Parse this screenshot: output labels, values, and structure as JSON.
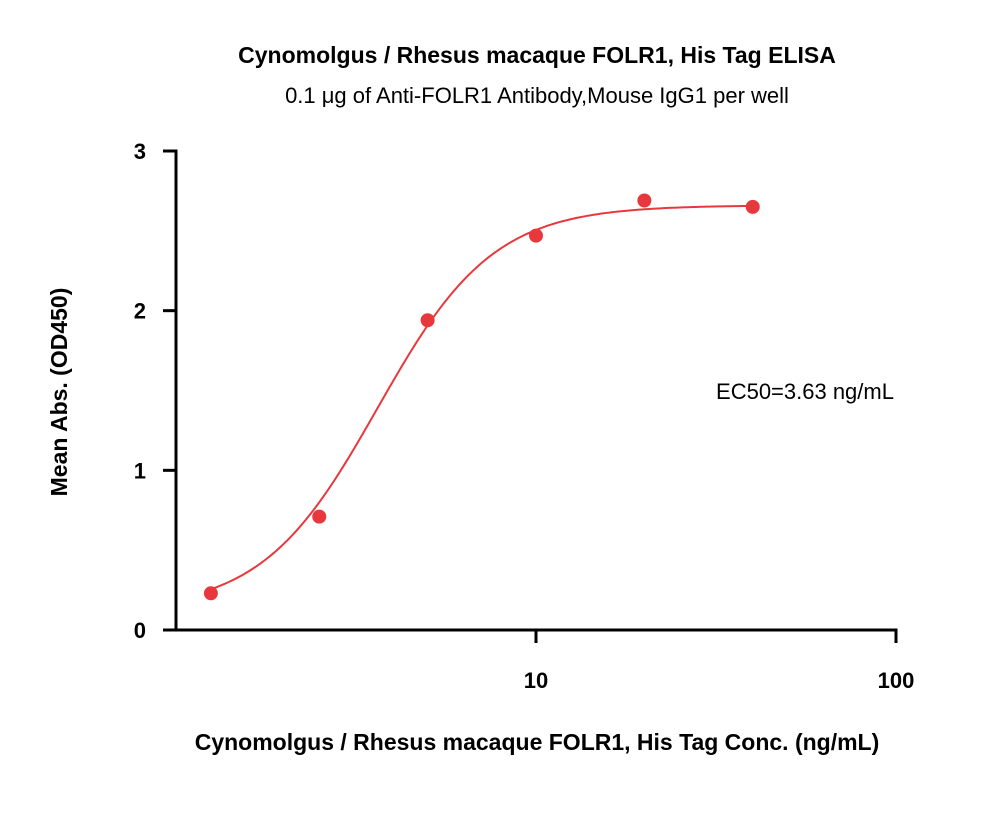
{
  "chart_data": {
    "type": "scatter",
    "title": "Cynomolgus / Rhesus macaque FOLR1, His Tag ELISA",
    "subtitle": "0.1 μg of Anti-FOLR1 Antibody,Mouse IgG1 per well",
    "xlabel": "Cynomolgus / Rhesus macaque FOLR1, His Tag Conc. (ng/mL)",
    "ylabel": "Mean Abs. (OD450)",
    "x_scale": "log",
    "xlim": [
      1,
      100
    ],
    "ylim": [
      0,
      3
    ],
    "x_ticks": [
      10,
      100
    ],
    "x_tick_labels": [
      "10",
      "100"
    ],
    "y_ticks": [
      0,
      1,
      2,
      3
    ],
    "y_tick_labels": [
      "0",
      "1",
      "2",
      "3"
    ],
    "grid": false,
    "series": [
      {
        "points": [
          {
            "x": 1.25,
            "y": 0.23
          },
          {
            "x": 2.5,
            "y": 0.71
          },
          {
            "x": 5,
            "y": 1.94
          },
          {
            "x": 10,
            "y": 2.47
          },
          {
            "x": 20,
            "y": 2.69
          },
          {
            "x": 40,
            "y": 2.65
          }
        ],
        "fit": {
          "model": "4PL",
          "bottom": 0.12,
          "top": 2.66,
          "ec50": 3.63,
          "hill": 2.7
        },
        "color": "#e8383d"
      }
    ],
    "annotations": [
      {
        "text": "EC50=3.63 ng/mL"
      }
    ]
  }
}
